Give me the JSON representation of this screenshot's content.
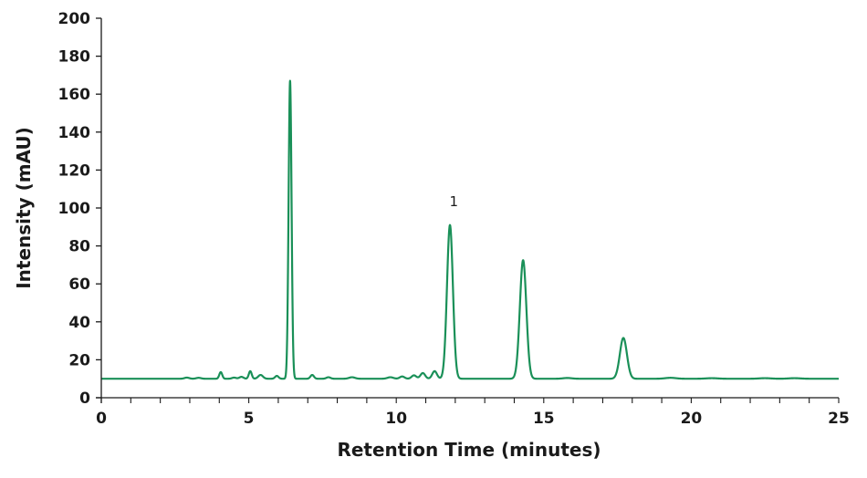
{
  "chart_data": {
    "type": "line",
    "title": "",
    "xlabel": "Retention Time (minutes)",
    "ylabel": "Intensity (mAU)",
    "xlim": [
      0,
      25
    ],
    "ylim": [
      0,
      200
    ],
    "x_ticks": [
      0,
      5,
      10,
      15,
      20,
      25
    ],
    "x_tick_labels": [
      "0",
      "5",
      "10",
      "15",
      "20",
      "25"
    ],
    "y_ticks": [
      0,
      20,
      40,
      60,
      80,
      100,
      120,
      140,
      160,
      180,
      200
    ],
    "y_tick_labels": [
      "0",
      "20",
      "40",
      "60",
      "80",
      "100",
      "120",
      "140",
      "160",
      "180",
      "200"
    ],
    "grid": false,
    "legend": "none",
    "line_color": "#1a9058",
    "baseline": 10,
    "peaks": [
      {
        "x": 2.9,
        "height": 0.6,
        "width": 0.08
      },
      {
        "x": 3.3,
        "height": 0.5,
        "width": 0.08
      },
      {
        "x": 4.05,
        "height": 3.5,
        "width": 0.05
      },
      {
        "x": 4.5,
        "height": 0.6,
        "width": 0.07
      },
      {
        "x": 4.75,
        "height": 1.0,
        "width": 0.07
      },
      {
        "x": 5.05,
        "height": 4.0,
        "width": 0.05
      },
      {
        "x": 5.4,
        "height": 2.0,
        "width": 0.08
      },
      {
        "x": 5.95,
        "height": 1.5,
        "width": 0.06
      },
      {
        "x": 6.4,
        "height": 157,
        "width": 0.05
      },
      {
        "x": 7.15,
        "height": 2.0,
        "width": 0.06
      },
      {
        "x": 7.7,
        "height": 0.8,
        "width": 0.07
      },
      {
        "x": 8.5,
        "height": 0.8,
        "width": 0.1
      },
      {
        "x": 9.8,
        "height": 0.8,
        "width": 0.1
      },
      {
        "x": 10.2,
        "height": 1.2,
        "width": 0.08
      },
      {
        "x": 10.6,
        "height": 1.8,
        "width": 0.08
      },
      {
        "x": 10.9,
        "height": 3.0,
        "width": 0.08
      },
      {
        "x": 11.3,
        "height": 4.0,
        "width": 0.08
      },
      {
        "x": 11.82,
        "height": 81,
        "width": 0.1
      },
      {
        "x": 14.3,
        "height": 62.5,
        "width": 0.11
      },
      {
        "x": 15.8,
        "height": 0.4,
        "width": 0.15
      },
      {
        "x": 17.7,
        "height": 21.5,
        "width": 0.12
      },
      {
        "x": 19.3,
        "height": 0.5,
        "width": 0.18
      },
      {
        "x": 20.7,
        "height": 0.3,
        "width": 0.2
      },
      {
        "x": 22.5,
        "height": 0.3,
        "width": 0.2
      },
      {
        "x": 23.5,
        "height": 0.3,
        "width": 0.2
      }
    ],
    "annotations": [
      {
        "text": "1",
        "x": 11.95,
        "y": 101
      }
    ]
  }
}
